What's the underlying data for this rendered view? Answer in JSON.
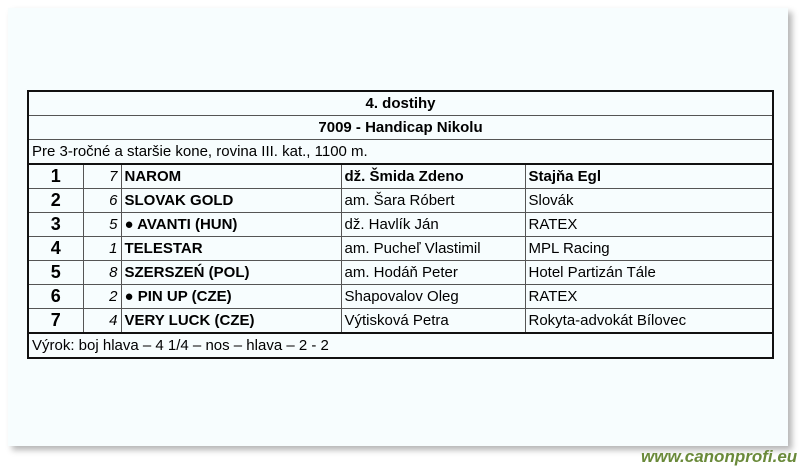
{
  "race": {
    "title": "4. dostihy",
    "name": "7009 - Handicap Nikolu",
    "conditions": "Pre 3-ročné a staršie kone, rovina III. kat., 1100 m.",
    "results": [
      {
        "place": "1",
        "number": "7",
        "horse": "NAROM",
        "jockey": "dž. Šmida Zdeno",
        "stable": "Stajňa Egl"
      },
      {
        "place": "2",
        "number": "6",
        "horse": "SLOVAK GOLD",
        "jockey": "am. Šara Róbert",
        "stable": "Slovák"
      },
      {
        "place": "3",
        "number": "5",
        "horse": "● AVANTI (HUN)",
        "jockey": "dž. Havlík Ján",
        "stable": "RATEX"
      },
      {
        "place": "4",
        "number": "1",
        "horse": "TELESTAR",
        "jockey": "am. Pucheľ Vlastimil",
        "stable": "MPL Racing"
      },
      {
        "place": "5",
        "number": "8",
        "horse": "SZERSZEŃ (POL)",
        "jockey": "am. Hodáň Peter",
        "stable": "Hotel Partizán Tále"
      },
      {
        "place": "6",
        "number": "2",
        "horse": "● PIN UP (CZE)",
        "jockey": "Shapovalov Oleg",
        "stable": "RATEX"
      },
      {
        "place": "7",
        "number": "4",
        "horse": "VERY LUCK (CZE)",
        "jockey": "Výtisková Petra",
        "stable": "Rokyta-advokát Bílovec"
      }
    ],
    "verdict": "Výrok: boj hlava – 4 1/4 – nos – hlava – 2 - 2"
  },
  "watermark": "www.canonprofi.eu"
}
